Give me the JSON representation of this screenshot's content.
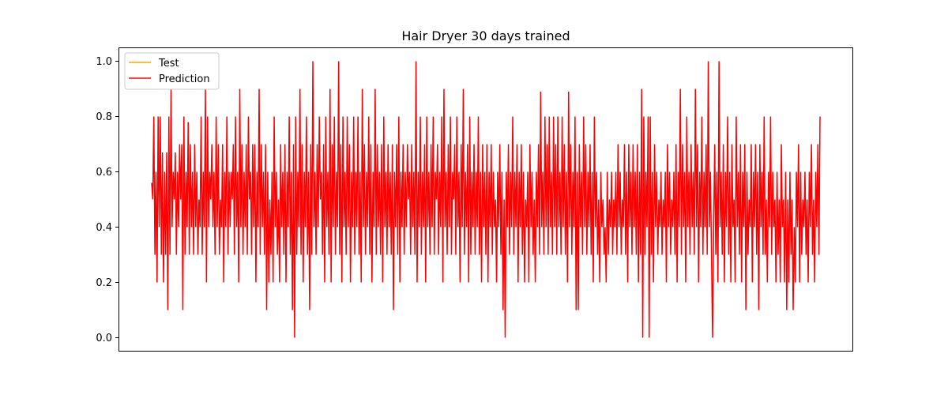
{
  "chart_data": {
    "type": "line",
    "title": "Hair Dryer 30 days trained",
    "xlabel": "",
    "ylabel": "",
    "ylim": [
      -0.05,
      1.05
    ],
    "yticks": [
      0.0,
      0.2,
      0.4,
      0.6,
      0.8,
      1.0
    ],
    "ytick_labels": [
      "0.0",
      "0.2",
      "0.4",
      "0.6",
      "0.8",
      "1.0"
    ],
    "x_visible": false,
    "grid": false,
    "legend_position": "top-left",
    "series": [
      {
        "name": "Test",
        "color": "#ffa500",
        "values": []
      },
      {
        "name": "Prediction",
        "color": "#ff0000",
        "values": [
          0.56,
          0.5,
          0.8,
          0.3,
          0.6,
          0.2,
          0.8,
          0.4,
          0.8,
          0.3,
          0.67,
          0.2,
          0.6,
          0.3,
          0.67,
          0.1,
          0.8,
          0.3,
          0.9,
          0.4,
          0.6,
          0.5,
          0.67,
          0.3,
          0.6,
          0.4,
          0.7,
          0.5,
          0.7,
          0.1,
          0.8,
          0.3,
          0.6,
          0.4,
          0.78,
          0.3,
          0.7,
          0.4,
          0.6,
          0.3,
          0.7,
          0.4,
          0.6,
          0.3,
          0.5,
          0.4,
          0.8,
          0.3,
          0.6,
          0.4,
          0.9,
          0.2,
          0.8,
          0.4,
          0.6,
          0.5,
          0.7,
          0.4,
          0.6,
          0.3,
          0.8,
          0.4,
          0.7,
          0.3,
          0.5,
          0.4,
          0.7,
          0.2,
          0.6,
          0.4,
          0.8,
          0.3,
          0.6,
          0.4,
          0.6,
          0.5,
          0.7,
          0.3,
          0.8,
          0.4,
          0.6,
          0.2,
          0.9,
          0.4,
          0.7,
          0.3,
          0.6,
          0.4,
          0.7,
          0.3,
          0.8,
          0.5,
          0.6,
          0.3,
          0.7,
          0.4,
          0.7,
          0.2,
          0.6,
          0.4,
          0.9,
          0.3,
          0.7,
          0.4,
          0.6,
          0.3,
          0.7,
          0.1,
          0.6,
          0.2,
          0.5,
          0.3,
          0.6,
          0.2,
          0.8,
          0.4,
          0.6,
          0.3,
          0.5,
          0.2,
          0.7,
          0.4,
          0.6,
          0.3,
          0.7,
          0.2,
          0.6,
          0.4,
          0.8,
          0.3,
          0.6,
          0.1,
          0.7,
          0.0,
          0.8,
          0.3,
          0.6,
          0.4,
          0.9,
          0.3,
          0.7,
          0.2,
          0.6,
          0.4,
          0.8,
          0.3,
          0.6,
          0.1,
          0.7,
          0.3,
          1.0,
          0.4,
          0.6,
          0.3,
          0.7,
          0.4,
          0.8,
          0.5,
          0.6,
          0.3,
          0.7,
          0.2,
          0.8,
          0.4,
          0.6,
          0.3,
          0.9,
          0.2,
          0.7,
          0.4,
          0.8,
          0.3,
          0.6,
          0.4,
          1.0,
          0.3,
          0.7,
          0.2,
          0.8,
          0.4,
          0.6,
          0.3,
          0.8,
          0.4,
          0.7,
          0.2,
          0.6,
          0.4,
          0.8,
          0.3,
          0.6,
          0.4,
          0.8,
          0.3,
          0.6,
          0.2,
          0.9,
          0.4,
          0.7,
          0.3,
          0.6,
          0.4,
          0.8,
          0.3,
          0.7,
          0.2,
          0.6,
          0.4,
          0.9,
          0.3,
          0.7,
          0.4,
          0.6,
          0.3,
          0.7,
          0.2,
          0.8,
          0.4,
          0.6,
          0.3,
          0.7,
          0.4,
          0.6,
          0.3,
          0.7,
          0.1,
          0.6,
          0.4,
          0.7,
          0.3,
          0.8,
          0.2,
          0.6,
          0.4,
          0.7,
          0.3,
          0.6,
          0.4,
          0.7,
          0.5,
          0.6,
          0.3,
          0.7,
          0.4,
          0.6,
          0.3,
          1.0,
          0.2,
          0.6,
          0.4,
          0.8,
          0.3,
          0.6,
          0.4,
          0.7,
          0.2,
          0.8,
          0.4,
          0.6,
          0.3,
          0.7,
          0.4,
          0.8,
          0.3,
          0.6,
          0.5,
          0.7,
          0.3,
          0.6,
          0.4,
          0.8,
          0.2,
          0.9,
          0.4,
          0.6,
          0.3,
          0.7,
          0.4,
          0.8,
          0.3,
          0.6,
          0.5,
          0.7,
          0.3,
          0.8,
          0.4,
          0.6,
          0.2,
          0.7,
          0.4,
          0.9,
          0.3,
          0.6,
          0.4,
          0.7,
          0.2,
          0.8,
          0.3,
          0.6,
          0.4,
          0.7,
          0.3,
          0.6,
          0.4,
          0.8,
          0.3,
          0.6,
          0.2,
          0.7,
          0.4,
          0.6,
          0.3,
          0.7,
          0.2,
          0.6,
          0.4,
          0.7,
          0.3,
          0.6,
          0.4,
          0.5,
          0.2,
          0.6,
          0.4,
          0.7,
          0.3,
          0.6,
          0.1,
          0.5,
          0.0,
          0.6,
          0.4,
          0.7,
          0.3,
          0.6,
          0.4,
          0.8,
          0.3,
          0.6,
          0.4,
          0.7,
          0.2,
          0.6,
          0.4,
          0.7,
          0.3,
          0.6,
          0.2,
          0.5,
          0.4,
          0.6,
          0.2,
          0.7,
          0.4,
          0.6,
          0.3,
          0.5,
          0.2,
          0.6,
          0.4,
          0.7,
          0.3,
          0.89,
          0.4,
          0.6,
          0.3,
          0.8,
          0.4,
          0.7,
          0.3,
          0.8,
          0.4,
          0.6,
          0.3,
          0.8,
          0.4,
          0.7,
          0.3,
          0.8,
          0.4,
          0.6,
          0.3,
          0.8,
          0.4,
          0.7,
          0.3,
          0.6,
          0.2,
          0.89,
          0.4,
          0.7,
          0.3,
          0.6,
          0.4,
          0.8,
          0.1,
          0.6,
          0.1,
          0.7,
          0.4,
          0.6,
          0.3,
          0.8,
          0.4,
          0.7,
          0.3,
          0.6,
          0.4,
          0.7,
          0.3,
          0.6,
          0.2,
          0.8,
          0.4,
          0.6,
          0.3,
          0.5,
          0.2,
          0.6,
          0.4,
          0.5,
          0.3,
          0.4,
          0.2,
          0.6,
          0.3,
          0.5,
          0.4,
          0.6,
          0.3,
          0.5,
          0.4,
          0.6,
          0.3,
          0.7,
          0.4,
          0.6,
          0.3,
          0.5,
          0.4,
          0.7,
          0.3,
          0.6,
          0.2,
          0.7,
          0.4,
          0.6,
          0.3,
          0.7,
          0.4,
          0.6,
          0.3,
          0.7,
          0.2,
          0.6,
          0.3,
          0.9,
          0.0,
          0.8,
          0.3,
          0.6,
          0.4,
          0.8,
          0.0,
          0.8,
          0.3,
          0.6,
          0.2,
          0.7,
          0.4,
          0.6,
          0.3,
          0.5,
          0.4,
          0.6,
          0.3,
          0.5,
          0.4,
          0.6,
          0.2,
          0.7,
          0.4,
          0.6,
          0.3,
          0.5,
          0.4,
          0.6,
          0.3,
          0.7,
          0.2,
          0.6,
          0.4,
          0.9,
          0.3,
          0.7,
          0.4,
          0.6,
          0.2,
          0.8,
          0.4,
          0.6,
          0.3,
          0.7,
          0.4,
          0.6,
          0.3,
          0.9,
          0.4,
          0.7,
          0.2,
          0.6,
          0.4,
          0.8,
          0.3,
          0.6,
          0.4,
          0.7,
          0.3,
          1.0,
          0.4,
          0.6,
          0.3,
          0.0,
          0.4,
          0.7,
          0.3,
          0.6,
          0.2,
          1.0,
          0.4,
          0.6,
          0.3,
          0.7,
          0.2,
          0.6,
          0.4,
          0.8,
          0.3,
          0.6,
          0.2,
          0.7,
          0.4,
          0.5,
          0.2,
          0.8,
          0.4,
          0.6,
          0.3,
          0.7,
          0.2,
          0.6,
          0.4,
          0.7,
          0.1,
          0.6,
          0.3,
          0.5,
          0.4,
          0.7,
          0.2,
          0.6,
          0.4,
          0.7,
          0.3,
          0.6,
          0.1,
          0.7,
          0.4,
          0.6,
          0.3,
          0.8,
          0.3,
          0.5,
          0.2,
          0.6,
          0.4,
          0.8,
          0.3,
          0.6,
          0.4,
          0.5,
          0.2,
          0.6,
          0.3,
          0.5,
          0.2,
          0.7,
          0.4,
          0.5,
          0.2,
          0.6,
          0.1,
          0.5,
          0.2,
          0.6,
          0.3,
          0.5,
          0.1,
          0.4,
          0.2,
          0.6,
          0.4,
          0.7,
          0.2,
          0.6,
          0.3,
          0.5,
          0.4,
          0.6,
          0.3,
          0.5,
          0.2,
          0.6,
          0.4,
          0.7,
          0.3,
          0.5,
          0.2,
          0.6,
          0.4,
          0.7,
          0.3,
          0.8
        ]
      }
    ]
  }
}
